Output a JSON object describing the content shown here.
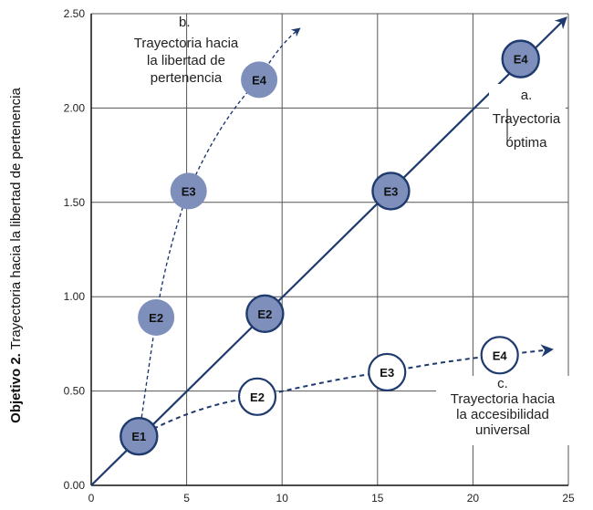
{
  "chart_data": {
    "type": "line",
    "ylabel_bold": "Objetivo 2.",
    "ylabel_rest": " Trayectoria hacia la libertad de pertenencia",
    "xlim": [
      0,
      25
    ],
    "ylim": [
      0,
      2.5
    ],
    "x_ticks": [
      "0",
      "5",
      "10",
      "15",
      "20",
      "25"
    ],
    "y_ticks": [
      "0.00",
      "0.50",
      "1.00",
      "1.50",
      "2.00",
      "2.50"
    ],
    "grid": true,
    "series": [
      {
        "id": "a",
        "style": "solid",
        "color": "#1f3a6e",
        "marker_fill": "#7d8fba",
        "points": [
          {
            "label": "E1",
            "x": 2.5,
            "y": 0.26
          },
          {
            "label": "E2",
            "x": 9.1,
            "y": 0.91
          },
          {
            "label": "E3",
            "x": 15.7,
            "y": 1.56
          },
          {
            "label": "E4",
            "x": 22.5,
            "y": 2.26
          }
        ],
        "annotation": [
          "a.",
          "Trayectoria",
          "óptima"
        ]
      },
      {
        "id": "b",
        "style": "dashed",
        "color": "#1f3a6e",
        "marker_fill": "#7d8fba",
        "points": [
          {
            "label": "E2",
            "x": 3.4,
            "y": 0.89
          },
          {
            "label": "E3",
            "x": 5.1,
            "y": 1.56
          },
          {
            "label": "E4",
            "x": 8.8,
            "y": 2.15
          }
        ],
        "annotation": [
          "b.",
          "Trayectoria hacia",
          "la libertad de",
          "pertenencia"
        ]
      },
      {
        "id": "c",
        "style": "dashed",
        "color": "#1f3a6e",
        "marker_fill": "#ffffff",
        "points": [
          {
            "label": "E2",
            "x": 8.7,
            "y": 0.47
          },
          {
            "label": "E3",
            "x": 15.5,
            "y": 0.6
          },
          {
            "label": "E4",
            "x": 21.4,
            "y": 0.69
          }
        ],
        "annotation": [
          "c.",
          "Trayectoria hacia",
          "la accesibilidad",
          "universal"
        ]
      }
    ]
  }
}
